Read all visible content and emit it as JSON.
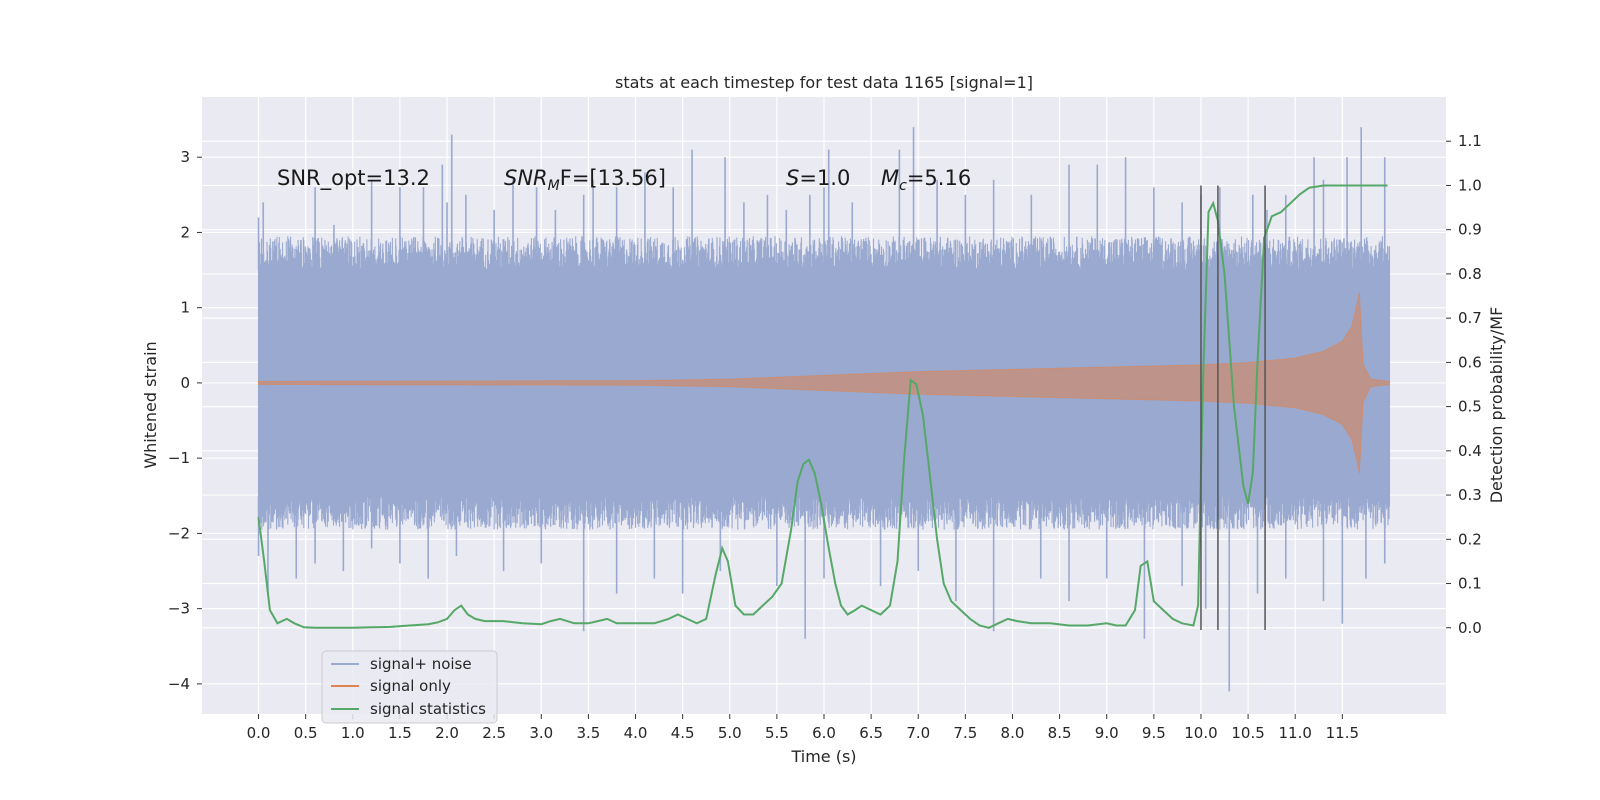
{
  "chart_data": {
    "type": "line",
    "title": "stats at each timestep for test data 1165 [signal=1]",
    "xlabel": "Time (s)",
    "ylabel": "Whitened strain",
    "y2label": "Detection probability/MF",
    "xlim": [
      -0.6,
      12.6
    ],
    "ylim": [
      -4.4,
      3.8
    ],
    "y2lim": [
      -0.195,
      1.2
    ],
    "xticks": [
      0.0,
      0.5,
      1.0,
      1.5,
      2.0,
      2.5,
      3.0,
      3.5,
      4.0,
      4.5,
      5.0,
      5.5,
      6.0,
      6.5,
      7.0,
      7.5,
      8.0,
      8.5,
      9.0,
      9.5,
      10.0,
      10.5,
      11.0,
      11.5
    ],
    "xtick_labels": [
      "0.0",
      "0.5",
      "1.0",
      "1.5",
      "2.0",
      "2.5",
      "3.0",
      "3.5",
      "4.0",
      "4.5",
      "5.0",
      "5.5",
      "6.0",
      "6.5",
      "7.0",
      "7.5",
      "8.0",
      "8.5",
      "9.0",
      "9.5",
      "10.0",
      "10.5",
      "11.0",
      "11.5"
    ],
    "yticks": [
      3,
      2,
      1,
      0,
      -1,
      -2,
      -3,
      -4
    ],
    "ytick_labels": [
      "3",
      "2",
      "1",
      "0",
      "−1",
      "−2",
      "−3",
      "−4"
    ],
    "y2ticks": [
      1.1,
      1.0,
      0.9,
      0.8,
      0.7,
      0.6,
      0.5,
      0.4,
      0.3,
      0.2,
      0.1,
      0.0
    ],
    "y2tick_labels": [
      "1.1",
      "1.0",
      "0.9",
      "0.8",
      "0.7",
      "0.6",
      "0.5",
      "0.4",
      "0.3",
      "0.2",
      "0.1",
      "0.0"
    ],
    "grid": true,
    "legend_position": "lower-left",
    "annotations": [
      {
        "text": "SNR_opt=13.2",
        "x": 0.2,
        "y": 2.75
      },
      {
        "text": "SNR_MF=[13.56]",
        "x": 2.6,
        "y": 2.75
      },
      {
        "text": "S=1.0",
        "x": 5.6,
        "y": 2.75
      },
      {
        "text": "M_c=5.16",
        "x": 6.6,
        "y": 2.75
      }
    ],
    "annotation_parts": {
      "snr_opt": "SNR_opt=13.2",
      "snr_mf_main": "SNR",
      "snr_mf_sub": "M",
      "snr_mf_rest": "F=[13.56]",
      "s_main": "S",
      "s_rest": "=1.0",
      "mc_main": "M",
      "mc_sub": "c",
      "mc_rest": "=5.16"
    },
    "vlines": [
      10.0,
      10.18,
      10.68
    ],
    "vline_ymin": -0.005,
    "vline_ymax": 1.0,
    "series": [
      {
        "name": "signal+ noise",
        "color": "#99a9cf",
        "axis": "left",
        "style": "noise",
        "t_start": 0.0,
        "t_end": 12.0,
        "band_core": [
          -1.5,
          1.5
        ],
        "peaks_upper": [
          [
            0.0,
            2.2
          ],
          [
            0.05,
            2.4
          ],
          [
            0.45,
            1.9
          ],
          [
            0.6,
            2.6
          ],
          [
            0.8,
            2.1
          ],
          [
            1.2,
            2.7
          ],
          [
            1.5,
            2.6
          ],
          [
            1.75,
            2.6
          ],
          [
            1.95,
            2.9
          ],
          [
            2.0,
            2.4
          ],
          [
            2.05,
            3.3
          ],
          [
            2.2,
            2.5
          ],
          [
            2.5,
            2.3
          ],
          [
            2.7,
            2.7
          ],
          [
            2.95,
            2.6
          ],
          [
            3.15,
            2.3
          ],
          [
            3.45,
            2.5
          ],
          [
            3.55,
            2.7
          ],
          [
            3.8,
            2.6
          ],
          [
            4.1,
            2.8
          ],
          [
            4.4,
            2.6
          ],
          [
            4.6,
            3.1
          ],
          [
            4.95,
            3.0
          ],
          [
            5.15,
            2.4
          ],
          [
            5.4,
            2.5
          ],
          [
            5.6,
            2.3
          ],
          [
            5.85,
            2.5
          ],
          [
            6.0,
            2.6
          ],
          [
            6.05,
            3.1
          ],
          [
            6.3,
            2.4
          ],
          [
            6.8,
            3.1
          ],
          [
            6.95,
            3.4
          ],
          [
            7.2,
            2.7
          ],
          [
            7.5,
            2.5
          ],
          [
            7.8,
            2.7
          ],
          [
            8.2,
            2.5
          ],
          [
            8.6,
            2.9
          ],
          [
            8.9,
            2.9
          ],
          [
            9.2,
            3.0
          ],
          [
            9.5,
            2.6
          ],
          [
            9.8,
            2.4
          ],
          [
            10.0,
            2.5
          ],
          [
            10.2,
            2.6
          ],
          [
            10.55,
            2.5
          ],
          [
            10.7,
            2.3
          ],
          [
            10.9,
            2.5
          ],
          [
            11.2,
            3.0
          ],
          [
            11.3,
            2.7
          ],
          [
            11.55,
            3.0
          ],
          [
            11.7,
            3.4
          ],
          [
            11.95,
            3.0
          ]
        ],
        "peaks_lower": [
          [
            0.0,
            -2.3
          ],
          [
            0.1,
            -2.8
          ],
          [
            0.4,
            -2.6
          ],
          [
            0.6,
            -2.4
          ],
          [
            0.9,
            -2.5
          ],
          [
            1.2,
            -2.2
          ],
          [
            1.5,
            -2.4
          ],
          [
            1.8,
            -2.6
          ],
          [
            2.1,
            -2.3
          ],
          [
            2.6,
            -2.5
          ],
          [
            3.0,
            -2.4
          ],
          [
            3.45,
            -3.3
          ],
          [
            3.8,
            -2.8
          ],
          [
            4.2,
            -2.6
          ],
          [
            4.5,
            -2.8
          ],
          [
            4.9,
            -2.5
          ],
          [
            5.5,
            -2.7
          ],
          [
            5.8,
            -3.4
          ],
          [
            6.0,
            -2.6
          ],
          [
            6.6,
            -2.7
          ],
          [
            7.0,
            -2.5
          ],
          [
            7.4,
            -2.9
          ],
          [
            7.8,
            -3.3
          ],
          [
            8.3,
            -2.6
          ],
          [
            8.6,
            -2.9
          ],
          [
            9.0,
            -2.6
          ],
          [
            9.4,
            -3.4
          ],
          [
            9.8,
            -2.7
          ],
          [
            10.05,
            -3.0
          ],
          [
            10.3,
            -4.1
          ],
          [
            10.6,
            -2.8
          ],
          [
            10.9,
            -2.6
          ],
          [
            11.3,
            -2.9
          ],
          [
            11.5,
            -3.2
          ],
          [
            11.75,
            -2.6
          ],
          [
            11.95,
            -2.4
          ]
        ]
      },
      {
        "name": "signal only",
        "color": "#dd8452",
        "axis": "left",
        "style": "chirp",
        "t_start": 0.0,
        "t_end": 12.0,
        "t_merger": 11.68,
        "amplitude_envelope": [
          [
            0.0,
            0.02
          ],
          [
            4.0,
            0.03
          ],
          [
            5.0,
            0.05
          ],
          [
            6.0,
            0.1
          ],
          [
            7.0,
            0.15
          ],
          [
            8.0,
            0.18
          ],
          [
            9.0,
            0.21
          ],
          [
            10.0,
            0.24
          ],
          [
            10.5,
            0.27
          ],
          [
            11.0,
            0.33
          ],
          [
            11.3,
            0.42
          ],
          [
            11.5,
            0.55
          ],
          [
            11.6,
            0.75
          ],
          [
            11.65,
            1.0
          ],
          [
            11.68,
            1.2
          ],
          [
            11.72,
            0.25
          ],
          [
            11.8,
            0.05
          ],
          [
            12.0,
            0.02
          ]
        ]
      },
      {
        "name": "signal statistics",
        "color": "#55a868",
        "axis": "right",
        "style": "line",
        "x": [
          0.0,
          0.06,
          0.12,
          0.2,
          0.3,
          0.38,
          0.48,
          0.6,
          0.8,
          1.0,
          1.2,
          1.4,
          1.6,
          1.8,
          1.9,
          2.0,
          2.08,
          2.15,
          2.22,
          2.3,
          2.4,
          2.6,
          2.8,
          3.0,
          3.1,
          3.2,
          3.35,
          3.5,
          3.6,
          3.7,
          3.8,
          4.0,
          4.2,
          4.35,
          4.45,
          4.55,
          4.65,
          4.75,
          4.85,
          4.92,
          4.98,
          5.06,
          5.15,
          5.25,
          5.35,
          5.45,
          5.55,
          5.65,
          5.72,
          5.78,
          5.84,
          5.9,
          5.97,
          6.05,
          6.12,
          6.18,
          6.25,
          6.33,
          6.4,
          6.5,
          6.6,
          6.7,
          6.78,
          6.85,
          6.92,
          6.98,
          7.05,
          7.12,
          7.2,
          7.27,
          7.35,
          7.45,
          7.55,
          7.65,
          7.75,
          7.85,
          7.95,
          8.05,
          8.2,
          8.4,
          8.6,
          8.8,
          9.0,
          9.1,
          9.2,
          9.3,
          9.36,
          9.43,
          9.5,
          9.6,
          9.7,
          9.8,
          9.92,
          9.97,
          10.02,
          10.08,
          10.13,
          10.18,
          10.25,
          10.35,
          10.45,
          10.5,
          10.55,
          10.6,
          10.67,
          10.75,
          10.85,
          10.95,
          11.05,
          11.15,
          11.3,
          11.5,
          11.7,
          11.8,
          11.9,
          11.98
        ],
        "values": [
          0.25,
          0.15,
          0.04,
          0.01,
          0.02,
          0.01,
          0.001,
          0.0,
          0.0,
          0.0,
          0.001,
          0.002,
          0.005,
          0.008,
          0.012,
          0.02,
          0.04,
          0.05,
          0.03,
          0.02,
          0.015,
          0.015,
          0.01,
          0.008,
          0.015,
          0.02,
          0.01,
          0.01,
          0.015,
          0.02,
          0.01,
          0.01,
          0.01,
          0.02,
          0.03,
          0.02,
          0.01,
          0.02,
          0.12,
          0.18,
          0.15,
          0.05,
          0.03,
          0.03,
          0.05,
          0.07,
          0.1,
          0.22,
          0.33,
          0.37,
          0.38,
          0.35,
          0.28,
          0.18,
          0.1,
          0.05,
          0.03,
          0.04,
          0.05,
          0.04,
          0.03,
          0.05,
          0.15,
          0.38,
          0.56,
          0.55,
          0.48,
          0.35,
          0.2,
          0.1,
          0.06,
          0.04,
          0.02,
          0.005,
          0.0,
          0.01,
          0.02,
          0.015,
          0.01,
          0.01,
          0.005,
          0.005,
          0.01,
          0.005,
          0.005,
          0.04,
          0.14,
          0.15,
          0.06,
          0.04,
          0.02,
          0.01,
          0.005,
          0.05,
          0.55,
          0.94,
          0.96,
          0.92,
          0.8,
          0.5,
          0.32,
          0.28,
          0.35,
          0.6,
          0.88,
          0.93,
          0.94,
          0.96,
          0.98,
          0.995,
          1.0,
          1.0,
          1.0,
          1.0,
          1.0,
          1.0
        ]
      }
    ]
  }
}
